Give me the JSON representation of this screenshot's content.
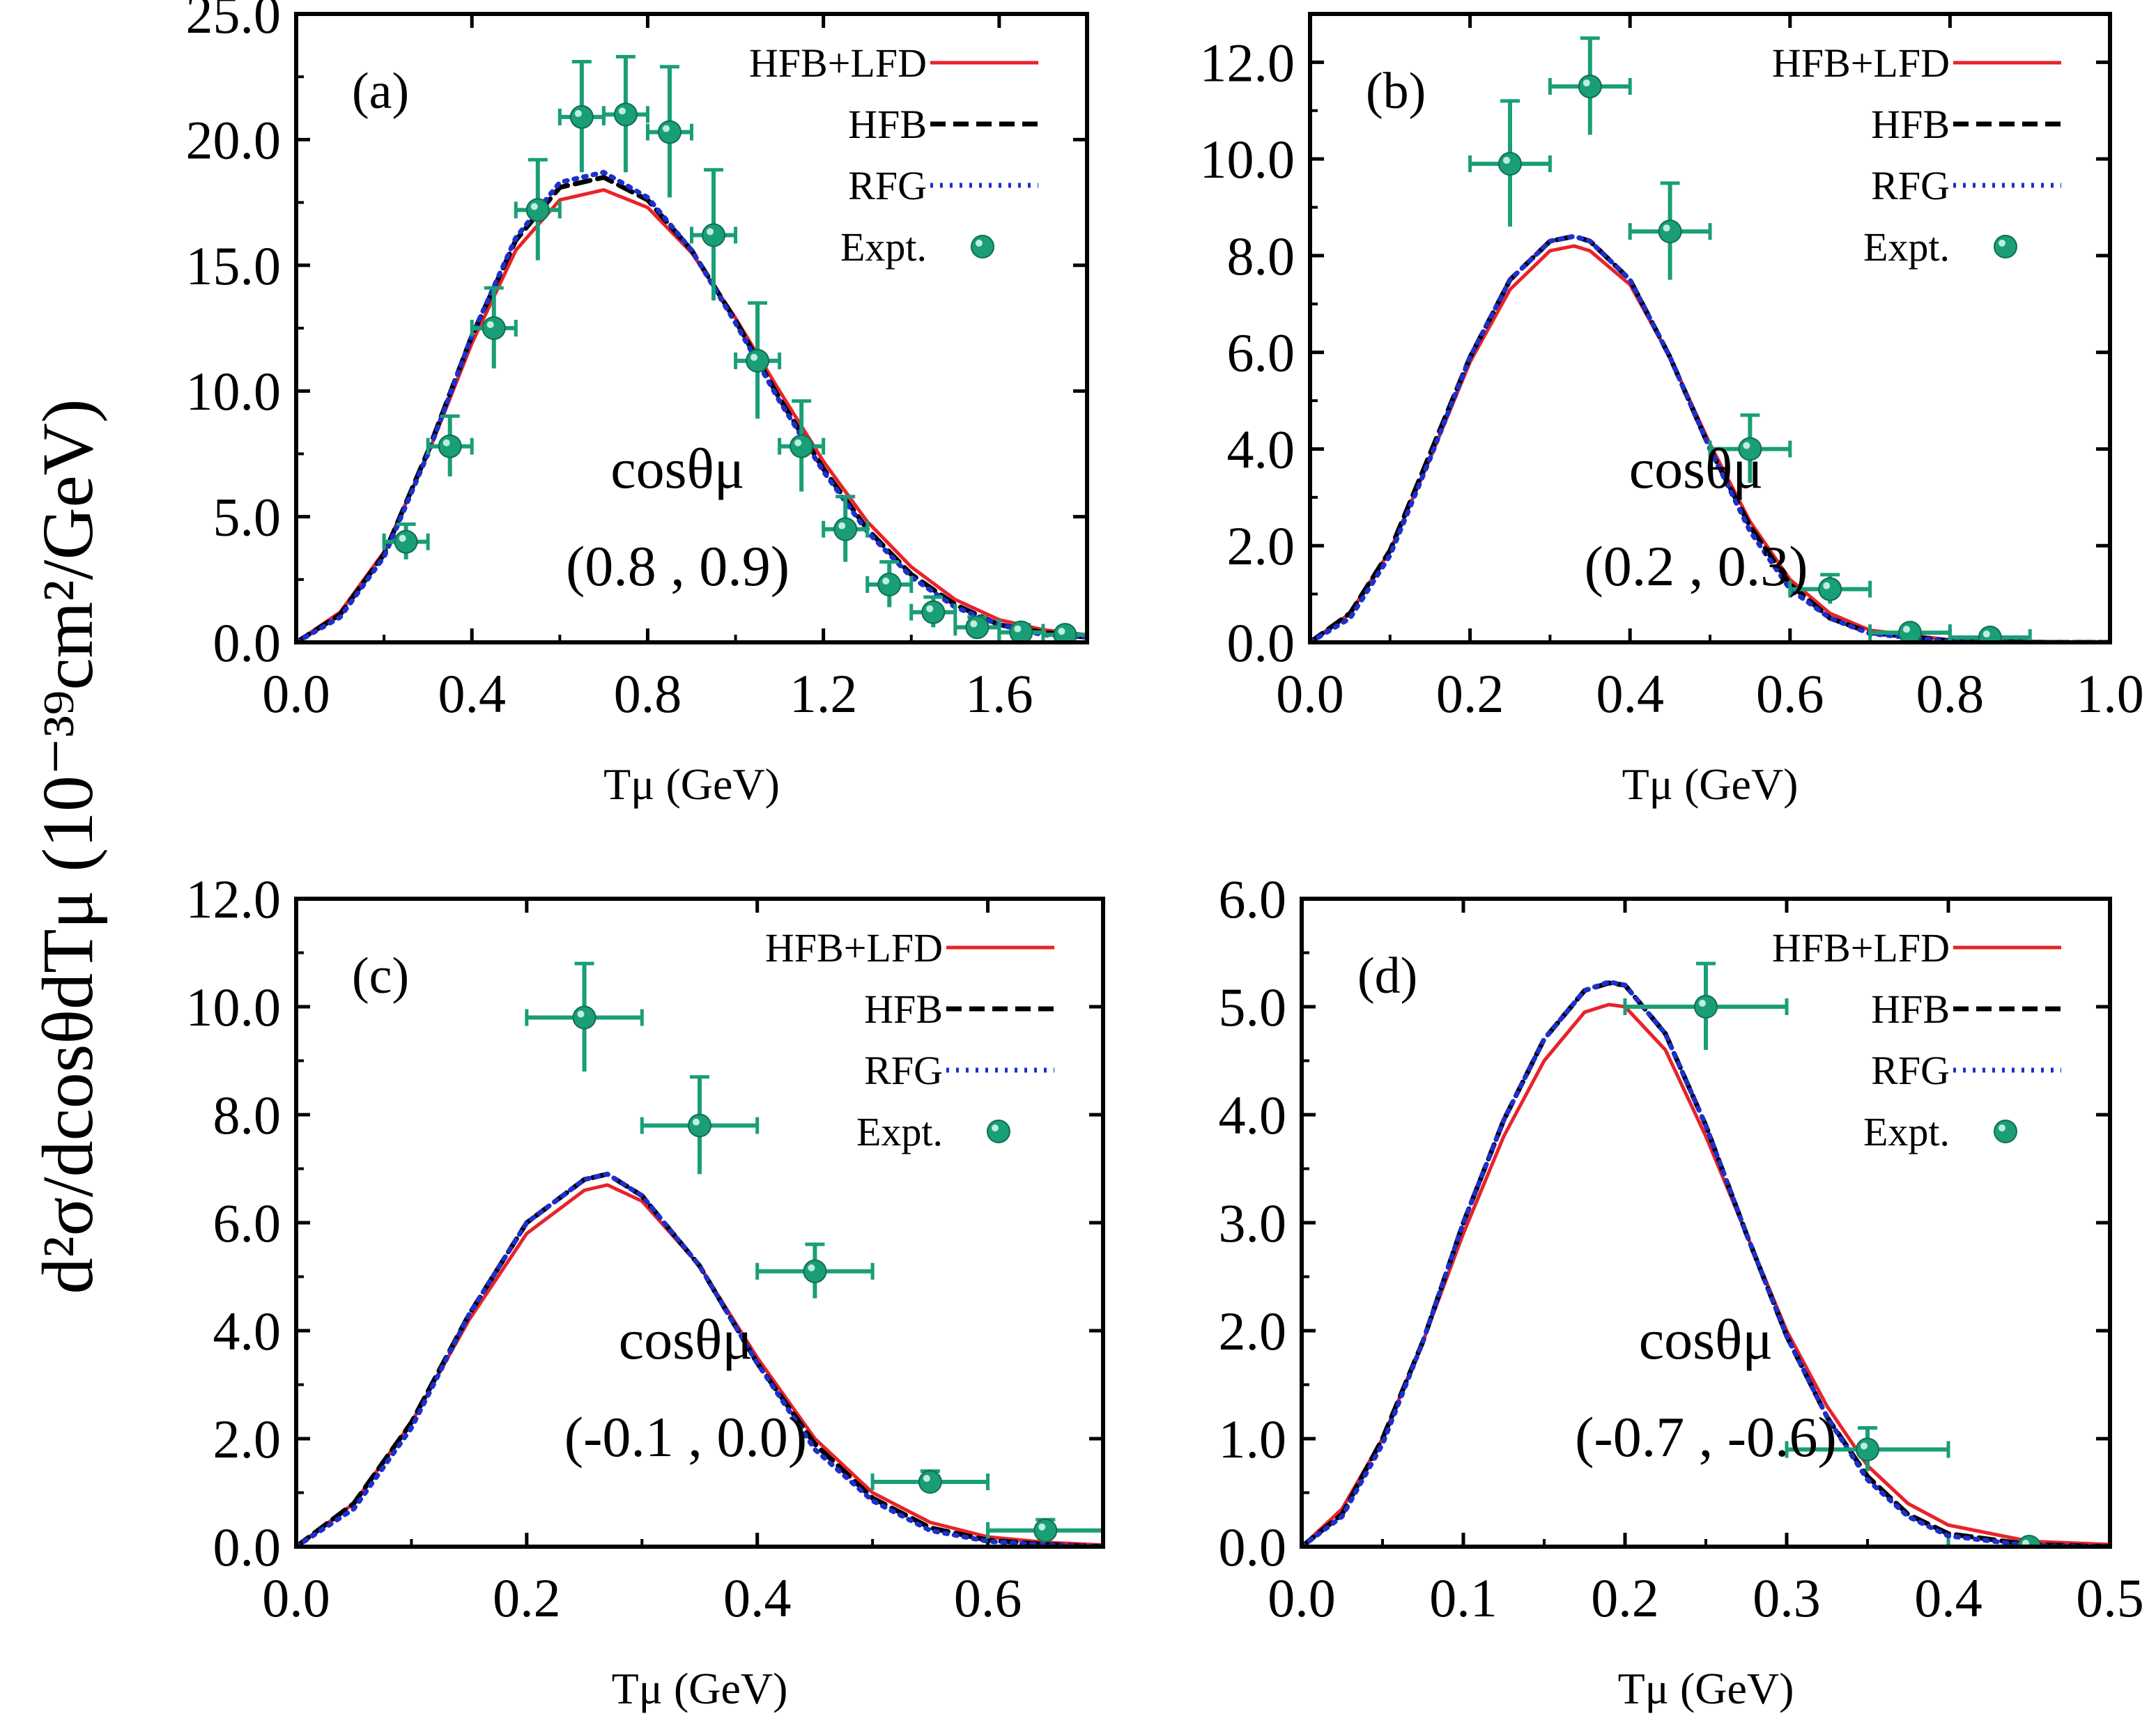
{
  "y_axis_label": "d²σ/dcosθdTμ (10⁻³⁹cm²/GeV)",
  "colors": {
    "hfb_lfd": "#e8232a",
    "hfb": "#000000",
    "rfg": "#1c2fd0",
    "expt": "#1a9e77"
  },
  "legend": {
    "hfb_lfd": "HFB+LFD",
    "hfb": "HFB",
    "rfg": "RFG",
    "expt": "Expt."
  },
  "chart_data": [
    {
      "type": "line",
      "panel": "(a)",
      "annotation_line1": "cosθμ",
      "annotation_line2": "(0.8 , 0.9)",
      "xlabel": "Tμ (GeV)",
      "ylabel": "d²σ/dcosθdTμ (10⁻³⁹cm²/GeV)",
      "xlim": [
        0.0,
        1.8
      ],
      "ylim": [
        0.0,
        25.0
      ],
      "x_ticks": [
        "0.0",
        "0.4",
        "0.8",
        "1.2",
        "1.6"
      ],
      "y_ticks": [
        "0.0",
        "5.0",
        "10.0",
        "15.0",
        "20.0",
        "25.0"
      ],
      "legend_placement": "top-right",
      "series": [
        {
          "name": "HFB+LFD",
          "style": "solid",
          "x": [
            0,
            0.1,
            0.2,
            0.3,
            0.4,
            0.5,
            0.6,
            0.7,
            0.8,
            0.9,
            1.0,
            1.1,
            1.2,
            1.3,
            1.4,
            1.5,
            1.6,
            1.7,
            1.8
          ],
          "y": [
            0,
            1.2,
            3.6,
            7.5,
            11.9,
            15.6,
            17.6,
            18.0,
            17.3,
            15.5,
            12.9,
            10.0,
            7.2,
            4.8,
            3.0,
            1.7,
            0.9,
            0.5,
            0.3
          ]
        },
        {
          "name": "HFB",
          "style": "dash",
          "x": [
            0,
            0.1,
            0.2,
            0.3,
            0.4,
            0.5,
            0.6,
            0.7,
            0.8,
            0.9,
            1.0,
            1.1,
            1.2,
            1.3,
            1.4,
            1.5,
            1.6,
            1.7,
            1.8
          ],
          "y": [
            0,
            1.1,
            3.5,
            7.6,
            12.2,
            16.0,
            18.1,
            18.5,
            17.6,
            15.6,
            12.8,
            9.7,
            6.9,
            4.5,
            2.7,
            1.5,
            0.7,
            0.4,
            0.2
          ]
        },
        {
          "name": "RFG",
          "style": "dot",
          "x": [
            0,
            0.1,
            0.2,
            0.3,
            0.4,
            0.5,
            0.6,
            0.7,
            0.8,
            0.9,
            1.0,
            1.1,
            1.2,
            1.3,
            1.4,
            1.5,
            1.6,
            1.7,
            1.8
          ],
          "y": [
            0,
            1.0,
            3.4,
            7.5,
            12.2,
            16.1,
            18.3,
            18.7,
            17.7,
            15.6,
            12.7,
            9.6,
            6.8,
            4.4,
            2.6,
            1.4,
            0.7,
            0.3,
            0.2
          ]
        }
      ],
      "expt": {
        "name": "Expt.",
        "x": [
          0.25,
          0.35,
          0.45,
          0.55,
          0.65,
          0.75,
          0.85,
          0.95,
          1.05,
          1.15,
          1.25,
          1.35,
          1.45,
          1.55,
          1.65,
          1.75
        ],
        "y": [
          4.0,
          7.8,
          12.5,
          17.2,
          20.9,
          21.0,
          20.3,
          16.2,
          11.2,
          7.8,
          4.5,
          2.3,
          1.2,
          0.6,
          0.4,
          0.3
        ],
        "yerr": [
          0.7,
          1.2,
          1.6,
          2.0,
          2.2,
          2.3,
          2.6,
          2.6,
          2.3,
          1.8,
          1.3,
          0.9,
          0.6,
          0.4,
          0.3,
          0.2
        ],
        "xerr": 0.05
      }
    },
    {
      "type": "line",
      "panel": "(b)",
      "annotation_line1": "cosθμ",
      "annotation_line2": "(0.2 , 0.3)",
      "xlabel": "Tμ (GeV)",
      "xlim": [
        0.0,
        1.0
      ],
      "ylim": [
        0.0,
        13.0
      ],
      "x_ticks": [
        "0.0",
        "0.2",
        "0.4",
        "0.6",
        "0.8",
        "1.0"
      ],
      "y_ticks": [
        "0.0",
        "2.0",
        "4.0",
        "6.0",
        "8.0",
        "10.0",
        "12.0"
      ],
      "legend_placement": "top-right",
      "series": [
        {
          "name": "HFB+LFD",
          "style": "solid",
          "x": [
            0,
            0.05,
            0.1,
            0.15,
            0.2,
            0.25,
            0.3,
            0.33,
            0.35,
            0.4,
            0.45,
            0.5,
            0.55,
            0.6,
            0.65,
            0.7,
            0.8,
            0.9,
            1.0
          ],
          "y": [
            0,
            0.6,
            1.9,
            3.8,
            5.8,
            7.3,
            8.1,
            8.2,
            8.1,
            7.4,
            5.9,
            4.1,
            2.5,
            1.3,
            0.6,
            0.25,
            0.05,
            0.02,
            0.0
          ]
        },
        {
          "name": "HFB",
          "style": "dash",
          "x": [
            0,
            0.05,
            0.1,
            0.15,
            0.2,
            0.25,
            0.3,
            0.33,
            0.35,
            0.4,
            0.45,
            0.5,
            0.55,
            0.6,
            0.65,
            0.7,
            0.8,
            0.9,
            1.0
          ],
          "y": [
            0,
            0.6,
            1.9,
            3.9,
            5.9,
            7.5,
            8.3,
            8.4,
            8.3,
            7.5,
            5.9,
            4.0,
            2.4,
            1.2,
            0.5,
            0.2,
            0.03,
            0.0,
            0.0
          ]
        },
        {
          "name": "RFG",
          "style": "dot",
          "x": [
            0,
            0.05,
            0.1,
            0.15,
            0.2,
            0.25,
            0.3,
            0.33,
            0.35,
            0.4,
            0.45,
            0.5,
            0.55,
            0.6,
            0.65,
            0.7,
            0.8,
            0.9,
            1.0
          ],
          "y": [
            0,
            0.5,
            1.8,
            3.8,
            5.9,
            7.5,
            8.3,
            8.4,
            8.3,
            7.5,
            5.9,
            4.0,
            2.3,
            1.1,
            0.5,
            0.18,
            0.02,
            0.0,
            0.0
          ]
        }
      ],
      "expt": {
        "name": "Expt.",
        "x": [
          0.25,
          0.35,
          0.45,
          0.55,
          0.65,
          0.75,
          0.85
        ],
        "y": [
          9.9,
          11.5,
          8.5,
          4.0,
          1.1,
          0.2,
          0.1
        ],
        "yerr": [
          1.3,
          1.0,
          1.0,
          0.7,
          0.3,
          0.1,
          0.1
        ],
        "xerr": 0.05
      }
    },
    {
      "type": "line",
      "panel": "(c)",
      "annotation_line1": "cosθμ",
      "annotation_line2": "(-0.1 , 0.0)",
      "xlabel": "Tμ (GeV)",
      "xlim": [
        0.0,
        0.7
      ],
      "ylim": [
        0.0,
        12.0
      ],
      "x_ticks": [
        "0.0",
        "0.2",
        "0.4",
        "0.6"
      ],
      "y_ticks": [
        "0.0",
        "2.0",
        "4.0",
        "6.0",
        "8.0",
        "10.0",
        "12.0"
      ],
      "legend_placement": "top-right",
      "series": [
        {
          "name": "HFB+LFD",
          "style": "solid",
          "x": [
            0,
            0.05,
            0.1,
            0.15,
            0.2,
            0.25,
            0.27,
            0.3,
            0.35,
            0.4,
            0.45,
            0.5,
            0.55,
            0.6,
            0.65,
            0.7
          ],
          "y": [
            0,
            0.8,
            2.3,
            4.2,
            5.8,
            6.6,
            6.7,
            6.4,
            5.2,
            3.5,
            2.0,
            1.0,
            0.45,
            0.18,
            0.08,
            0.03
          ]
        },
        {
          "name": "HFB",
          "style": "dash",
          "x": [
            0,
            0.05,
            0.1,
            0.15,
            0.2,
            0.25,
            0.27,
            0.3,
            0.35,
            0.4,
            0.45,
            0.5,
            0.55,
            0.6,
            0.65,
            0.7
          ],
          "y": [
            0,
            0.8,
            2.3,
            4.3,
            6.0,
            6.8,
            6.9,
            6.5,
            5.2,
            3.4,
            1.9,
            0.9,
            0.35,
            0.12,
            0.04,
            0.0
          ]
        },
        {
          "name": "RFG",
          "style": "dot",
          "x": [
            0,
            0.05,
            0.1,
            0.15,
            0.2,
            0.25,
            0.27,
            0.3,
            0.35,
            0.4,
            0.45,
            0.5,
            0.55,
            0.6,
            0.65,
            0.7
          ],
          "y": [
            0,
            0.7,
            2.2,
            4.3,
            6.0,
            6.8,
            6.9,
            6.5,
            5.2,
            3.4,
            1.8,
            0.85,
            0.3,
            0.1,
            0.03,
            0.0
          ]
        }
      ],
      "expt": {
        "name": "Expt.",
        "x": [
          0.25,
          0.35,
          0.45,
          0.55,
          0.65
        ],
        "y": [
          9.8,
          7.8,
          5.1,
          1.2,
          0.3
        ],
        "yerr": [
          1.0,
          0.9,
          0.5,
          0.2,
          0.2
        ],
        "xerr": 0.05
      }
    },
    {
      "type": "line",
      "panel": "(d)",
      "annotation_line1": "cosθμ",
      "annotation_line2": "(-0.7 , -0.6)",
      "xlabel": "Tμ (GeV)",
      "xlim": [
        0.0,
        0.5
      ],
      "ylim": [
        0.0,
        6.0
      ],
      "x_ticks": [
        "0.0",
        "0.1",
        "0.2",
        "0.3",
        "0.4",
        "0.5"
      ],
      "y_ticks": [
        "0.0",
        "1.0",
        "2.0",
        "3.0",
        "4.0",
        "5.0",
        "6.0"
      ],
      "legend_placement": "top-right",
      "series": [
        {
          "name": "HFB+LFD",
          "style": "solid",
          "x": [
            0,
            0.025,
            0.05,
            0.075,
            0.1,
            0.125,
            0.15,
            0.175,
            0.19,
            0.2,
            0.225,
            0.25,
            0.275,
            0.3,
            0.325,
            0.35,
            0.375,
            0.4,
            0.45,
            0.5
          ],
          "y": [
            0,
            0.35,
            1.0,
            1.9,
            2.9,
            3.8,
            4.5,
            4.95,
            5.02,
            5.0,
            4.6,
            3.8,
            2.9,
            2.0,
            1.3,
            0.75,
            0.4,
            0.2,
            0.05,
            0.02
          ]
        },
        {
          "name": "HFB",
          "style": "dash",
          "x": [
            0,
            0.025,
            0.05,
            0.075,
            0.1,
            0.125,
            0.15,
            0.175,
            0.19,
            0.2,
            0.225,
            0.25,
            0.275,
            0.3,
            0.325,
            0.35,
            0.375,
            0.4,
            0.45,
            0.5
          ],
          "y": [
            0,
            0.3,
            1.0,
            1.9,
            3.0,
            3.95,
            4.7,
            5.15,
            5.22,
            5.2,
            4.75,
            3.9,
            2.9,
            1.95,
            1.2,
            0.65,
            0.3,
            0.12,
            0.02,
            0.0
          ]
        },
        {
          "name": "RFG",
          "style": "dot",
          "x": [
            0,
            0.025,
            0.05,
            0.075,
            0.1,
            0.125,
            0.15,
            0.175,
            0.19,
            0.2,
            0.225,
            0.25,
            0.275,
            0.3,
            0.325,
            0.35,
            0.375,
            0.4,
            0.45,
            0.5
          ],
          "y": [
            0,
            0.28,
            0.95,
            1.9,
            3.0,
            3.95,
            4.7,
            5.15,
            5.23,
            5.2,
            4.75,
            3.9,
            2.9,
            1.95,
            1.2,
            0.62,
            0.28,
            0.1,
            0.01,
            0.0
          ]
        }
      ],
      "expt": {
        "name": "Expt.",
        "x": [
          0.25,
          0.35,
          0.45
        ],
        "y": [
          5.0,
          0.9,
          0.0
        ],
        "yerr": [
          0.4,
          0.2,
          0.05
        ],
        "xerr": 0.05
      }
    }
  ]
}
